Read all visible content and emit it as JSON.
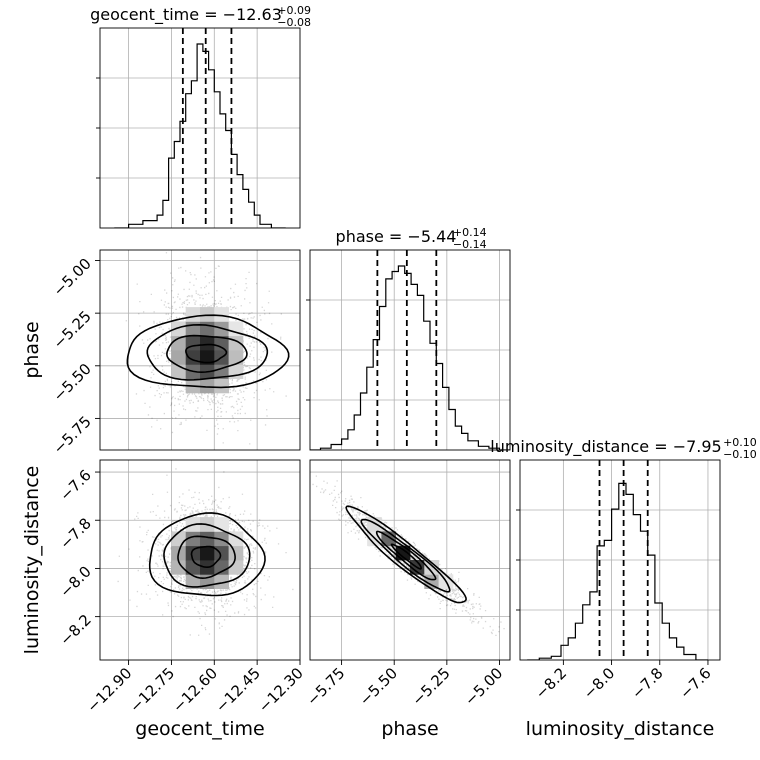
{
  "chart_data": {
    "type": "corner",
    "parameters": [
      {
        "name": "geocent_time",
        "label": "geocent_time",
        "median": -12.63,
        "err_plus": 0.09,
        "err_minus": 0.08,
        "title": "geocent_time = −12.63",
        "title_sup": "+0.09",
        "title_sub": "−0.08",
        "range": [
          -13.0,
          -12.3
        ],
        "ticks": [
          -12.9,
          -12.75,
          -12.6,
          -12.45,
          -12.3
        ],
        "tick_labels": [
          "−12.90",
          "−12.75",
          "−12.60",
          "−12.45",
          "−12.30"
        ],
        "quantiles": [
          -12.71,
          -12.63,
          -12.54
        ],
        "hist_edges": [
          -12.95,
          -12.9,
          -12.85,
          -12.8,
          -12.78,
          -12.76,
          -12.74,
          -12.72,
          -12.7,
          -12.68,
          -12.66,
          -12.64,
          -12.62,
          -12.6,
          -12.58,
          -12.56,
          -12.54,
          -12.52,
          -12.5,
          -12.48,
          -12.46,
          -12.44,
          -12.4,
          -12.35
        ],
        "hist_values": [
          0.0,
          0.02,
          0.04,
          0.07,
          0.15,
          0.38,
          0.47,
          0.58,
          0.73,
          0.8,
          1.0,
          0.96,
          0.86,
          0.74,
          0.62,
          0.53,
          0.4,
          0.29,
          0.21,
          0.14,
          0.07,
          0.02,
          0.0
        ]
      },
      {
        "name": "phase",
        "label": "phase",
        "median": -5.44,
        "err_plus": 0.14,
        "err_minus": 0.14,
        "title": "phase = −5.44",
        "title_sup": "+0.14",
        "title_sub": "−0.14",
        "range": [
          -5.9,
          -4.95
        ],
        "ticks": [
          -5.75,
          -5.5,
          -5.25,
          -5.0
        ],
        "tick_labels": [
          "−5.75",
          "−5.50",
          "−5.25",
          "−5.00"
        ],
        "quantiles": [
          -5.58,
          -5.44,
          -5.3
        ],
        "hist_edges": [
          -5.9,
          -5.85,
          -5.8,
          -5.75,
          -5.72,
          -5.69,
          -5.66,
          -5.63,
          -5.6,
          -5.57,
          -5.54,
          -5.51,
          -5.48,
          -5.45,
          -5.42,
          -5.39,
          -5.36,
          -5.33,
          -5.3,
          -5.27,
          -5.24,
          -5.21,
          -5.18,
          -5.15,
          -5.1,
          -5.05,
          -5.0,
          -4.95
        ],
        "hist_values": [
          0.0,
          0.01,
          0.03,
          0.06,
          0.11,
          0.19,
          0.31,
          0.45,
          0.6,
          0.78,
          0.93,
          0.97,
          1.0,
          0.96,
          0.9,
          0.84,
          0.7,
          0.58,
          0.47,
          0.34,
          0.22,
          0.13,
          0.09,
          0.05,
          0.02,
          0.01,
          0.0
        ]
      },
      {
        "name": "luminosity_distance",
        "label": "luminosity_distance",
        "median": -7.95,
        "err_plus": 0.1,
        "err_minus": 0.1,
        "title": "luminosity_distance = −7.95",
        "title_sup": "+0.10",
        "title_sub": "−0.10",
        "range": [
          -8.38,
          -7.55
        ],
        "ticks": [
          -8.2,
          -8.0,
          -7.8,
          -7.6
        ],
        "tick_labels": [
          "−8.2",
          "−8.0",
          "−7.8",
          "−7.6"
        ],
        "quantiles": [
          -8.05,
          -7.95,
          -7.85
        ],
        "hist_edges": [
          -8.35,
          -8.3,
          -8.25,
          -8.21,
          -8.18,
          -8.15,
          -8.12,
          -8.09,
          -8.06,
          -8.03,
          -8.0,
          -7.97,
          -7.94,
          -7.91,
          -7.88,
          -7.85,
          -7.82,
          -7.79,
          -7.76,
          -7.73,
          -7.7,
          -7.65,
          -7.6
        ],
        "hist_values": [
          0.0,
          0.01,
          0.02,
          0.08,
          0.12,
          0.2,
          0.3,
          0.37,
          0.62,
          0.65,
          0.82,
          0.96,
          0.9,
          0.79,
          0.7,
          0.57,
          0.31,
          0.2,
          0.12,
          0.07,
          0.03,
          0.0
        ]
      }
    ],
    "pairs": [
      {
        "x": "geocent_time",
        "y": "phase",
        "mean": [
          -12.63,
          -5.44
        ],
        "sd": [
          0.085,
          0.14
        ],
        "corr": 0.0
      },
      {
        "x": "geocent_time",
        "y": "luminosity_distance",
        "mean": [
          -12.63,
          -7.95
        ],
        "sd": [
          0.085,
          0.1
        ],
        "corr": 0.0
      },
      {
        "x": "phase",
        "y": "luminosity_distance",
        "mean": [
          -5.44,
          -7.95
        ],
        "sd": [
          0.14,
          0.1
        ],
        "corr": -0.95
      }
    ],
    "contour_levels_sigma": [
      0.5,
      1.0,
      1.5,
      2.0
    ],
    "grid": true,
    "legend": "none"
  }
}
